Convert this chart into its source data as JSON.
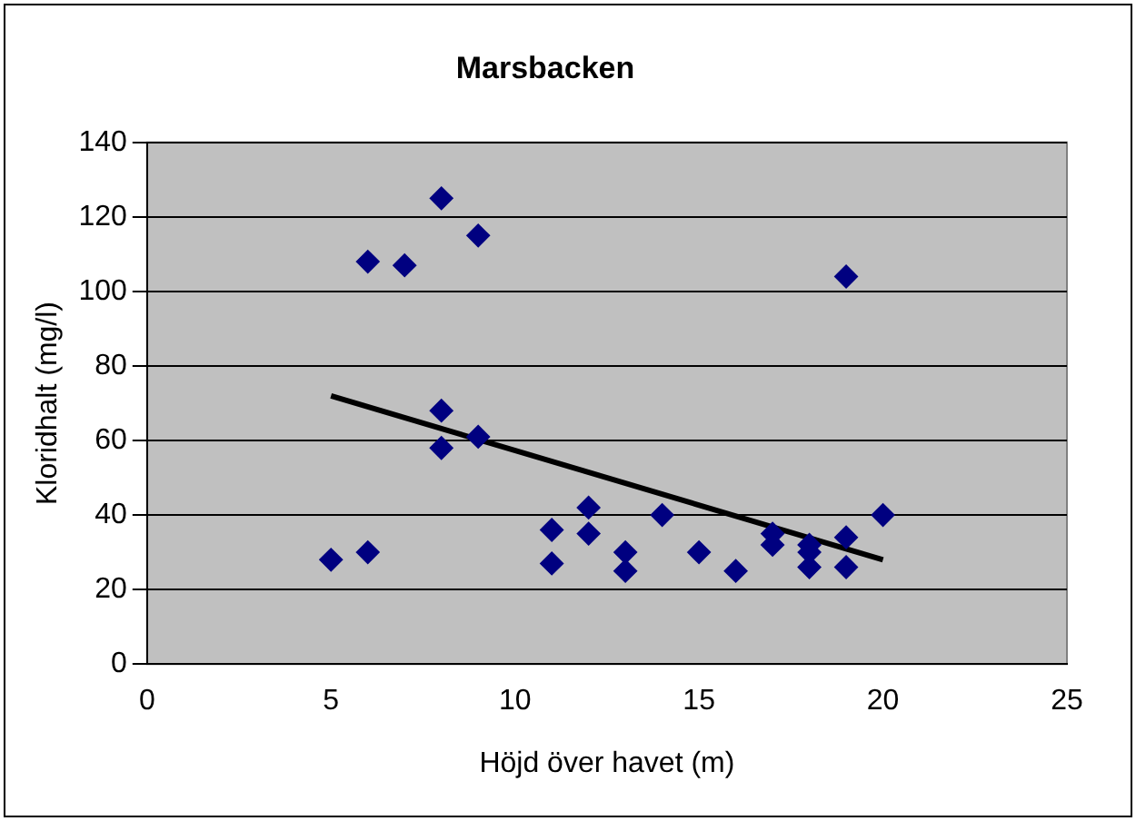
{
  "chart_data": {
    "type": "scatter",
    "title": "Marsbacken",
    "xlabel": "Höjd över havet (m)",
    "ylabel": "Kloridhalt (mg/l)",
    "xlim": [
      0,
      25
    ],
    "xticks": [
      0,
      5,
      10,
      15,
      20,
      25
    ],
    "ylim": [
      0,
      140
    ],
    "yticks": [
      0,
      20,
      40,
      60,
      80,
      100,
      120,
      140
    ],
    "grid": "y",
    "legend": false,
    "marker": "diamond",
    "series": [
      {
        "color": "#000080",
        "x": [
          5,
          6,
          6,
          7,
          8,
          8,
          8,
          9,
          9,
          11,
          11,
          12,
          12,
          13,
          13,
          14,
          15,
          16,
          17,
          17,
          18,
          18,
          18,
          19,
          19,
          19,
          20
        ],
        "values": [
          28,
          30,
          108,
          107,
          125,
          68,
          58,
          115,
          61,
          36,
          27,
          42,
          35,
          30,
          25,
          40,
          30,
          25,
          35,
          32,
          32,
          30,
          26,
          34,
          26,
          104,
          40
        ]
      },
      {
        "type": "line",
        "color": "#000000",
        "x": [
          5,
          20
        ],
        "values": [
          72,
          28
        ],
        "marker": "none"
      }
    ]
  }
}
